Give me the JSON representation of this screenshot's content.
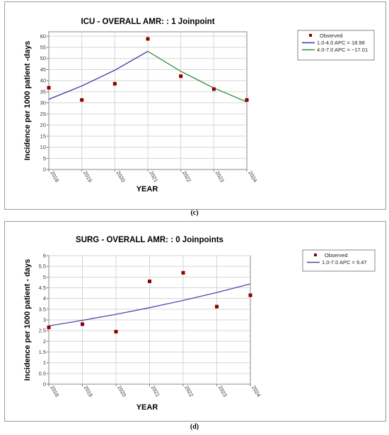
{
  "chart_data": [
    {
      "type": "line",
      "panel": "(c)",
      "title": "ICU - OVERALL AMR: : 1 Joinpoint",
      "xlabel": "YEAR",
      "ylabel": "Incidence per 1000 patient -days",
      "x_ticks": [
        "2018",
        "2019",
        "2020",
        "2021",
        "2022",
        "2023",
        "2024"
      ],
      "y_ticks": [
        "0",
        "5",
        "10",
        "15",
        "20",
        "25",
        "30",
        "35",
        "40",
        "45",
        "50",
        "55",
        "60"
      ],
      "xlim": [
        1,
        7
      ],
      "ylim": [
        0,
        62
      ],
      "grid": true,
      "legend_position": "top-right",
      "observed": {
        "name": "Observed",
        "color": "#8b0000",
        "x": [
          1,
          2,
          3,
          4,
          5,
          6,
          7
        ],
        "y": [
          36.8,
          31.3,
          38.6,
          58.8,
          42.0,
          36.2,
          31.3
        ]
      },
      "series": [
        {
          "name": "1.0-4.0 APC  =  18.98",
          "color": "#3333aa",
          "x": [
            1,
            2,
            3,
            4
          ],
          "y": [
            31.6,
            37.6,
            44.7,
            53.2
          ]
        },
        {
          "name": "4.0-7.0 APC  = −17.01",
          "color": "#3d8b3d",
          "x": [
            4,
            5,
            6,
            7
          ],
          "y": [
            53.2,
            44.2,
            36.7,
            30.4
          ]
        }
      ]
    },
    {
      "type": "line",
      "panel": "(d)",
      "title": "SURG - OVERALL AMR: : 0 Joinpoints",
      "xlabel": "YEAR",
      "ylabel": "Incidence per 1000 patient - days",
      "x_ticks": [
        "2018",
        "2019",
        "2020",
        "2021",
        "2022",
        "2023",
        "2024"
      ],
      "y_ticks": [
        "0",
        "0.5",
        "1",
        "1.5",
        "2",
        "2.5",
        "3",
        "3.5",
        "4",
        "4.5",
        "5",
        "5.5",
        "6"
      ],
      "xlim": [
        1,
        7
      ],
      "ylim": [
        0,
        6
      ],
      "grid": true,
      "legend_position": "top-right",
      "observed": {
        "name": "Observed",
        "color": "#8b0000",
        "x": [
          1,
          2,
          3,
          4,
          5,
          6,
          7
        ],
        "y": [
          2.65,
          2.8,
          2.45,
          4.8,
          5.2,
          3.62,
          4.15
        ]
      },
      "series": [
        {
          "name": "1.0-7.0 APC  =  9.47",
          "color": "#4a4aa8",
          "x": [
            1,
            2,
            3,
            4,
            5,
            6,
            7
          ],
          "y": [
            2.72,
            2.98,
            3.26,
            3.57,
            3.91,
            4.28,
            4.68
          ]
        }
      ]
    }
  ],
  "panel_labels": {
    "c": "(c)",
    "d": "(d)"
  }
}
